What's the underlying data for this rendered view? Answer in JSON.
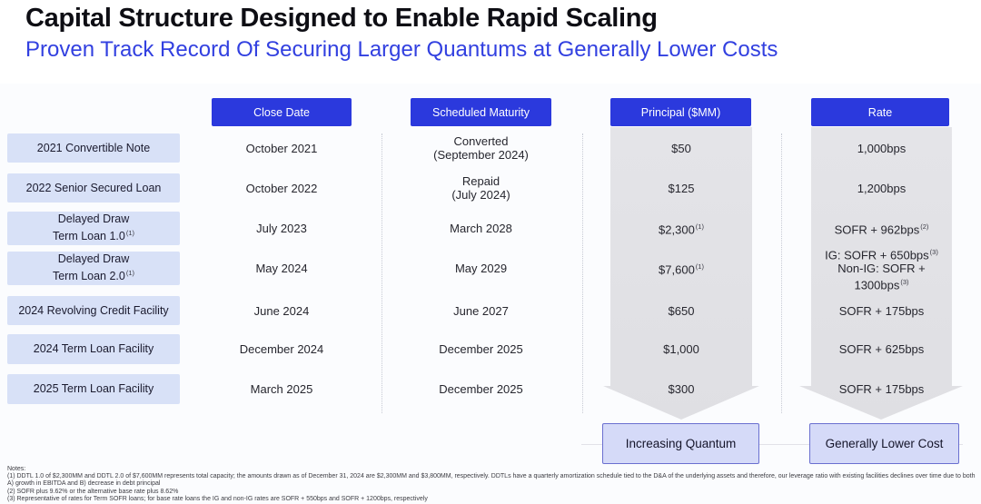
{
  "slide": {
    "title": "Capital Structure Designed to Enable Rapid Scaling",
    "subtitle": "Proven Track Record Of Securing Larger Quantums at Generally Lower Costs"
  },
  "colors": {
    "title": "#0e0e14",
    "subtitle": "#3240e0",
    "header_bg": "#2b39dd",
    "header_text": "#ffffff",
    "row_label_bg": "#d8e1f7",
    "arrow_fill": "#dfdfe3",
    "callout_bg": "#d5daf8",
    "callout_border": "#6a6fd0"
  },
  "table": {
    "columns": [
      "Close Date",
      "Scheduled Maturity",
      "Principal ($MM)",
      "Rate"
    ],
    "rows": [
      {
        "label_lines": [
          "2021 Convertible Note"
        ],
        "label_sup": "",
        "close_date": "October 2021",
        "maturity_lines": [
          "Converted",
          "(September 2024)"
        ],
        "principal": "$50",
        "principal_sup": "",
        "rate_lines": [
          {
            "text": "1,000bps",
            "sup": ""
          }
        ]
      },
      {
        "label_lines": [
          "2022 Senior Secured Loan"
        ],
        "label_sup": "",
        "close_date": "October 2022",
        "maturity_lines": [
          "Repaid",
          "(July 2024)"
        ],
        "principal": "$125",
        "principal_sup": "",
        "rate_lines": [
          {
            "text": "1,200bps",
            "sup": ""
          }
        ]
      },
      {
        "label_lines": [
          "Delayed Draw",
          "Term Loan 1.0"
        ],
        "label_sup": "(1)",
        "close_date": "July 2023",
        "maturity_lines": [
          "March 2028"
        ],
        "principal": "$2,300",
        "principal_sup": "(1)",
        "rate_lines": [
          {
            "text": "SOFR + 962bps",
            "sup": "(2)"
          }
        ]
      },
      {
        "label_lines": [
          "Delayed Draw",
          "Term Loan 2.0"
        ],
        "label_sup": "(1)",
        "close_date": "May 2024",
        "maturity_lines": [
          "May 2029"
        ],
        "principal": "$7,600",
        "principal_sup": "(1)",
        "rate_lines": [
          {
            "text": "IG: SOFR + 650bps",
            "sup": "(3)"
          },
          {
            "text": "Non-IG: SOFR + 1300bps",
            "sup": "(3)"
          }
        ]
      },
      {
        "label_lines": [
          "2024 Revolving Credit Facility"
        ],
        "label_sup": "",
        "close_date": "June 2024",
        "maturity_lines": [
          "June 2027"
        ],
        "principal": "$650",
        "principal_sup": "",
        "rate_lines": [
          {
            "text": "SOFR + 175bps",
            "sup": ""
          }
        ]
      },
      {
        "label_lines": [
          "2024 Term Loan Facility"
        ],
        "label_sup": "",
        "close_date": "December 2024",
        "maturity_lines": [
          "December 2025"
        ],
        "principal": "$1,000",
        "principal_sup": "",
        "rate_lines": [
          {
            "text": "SOFR + 625bps",
            "sup": ""
          }
        ]
      },
      {
        "label_lines": [
          "2025 Term Loan Facility"
        ],
        "label_sup": "",
        "close_date": "March 2025",
        "maturity_lines": [
          "December 2025"
        ],
        "principal": "$300",
        "principal_sup": "",
        "rate_lines": [
          {
            "text": "SOFR + 175bps",
            "sup": ""
          }
        ]
      }
    ]
  },
  "callouts": [
    "Increasing Quantum",
    "Generally Lower Cost"
  ],
  "notes": [
    "Notes:",
    "(1) DDTL 1.0 of $2,300MM and DDTL 2.0 of $7,600MM represents total capacity; the amounts drawn as of December 31, 2024 are $2,300MM and $3,800MM, respectively. DDTLs have a quarterly amortization schedule tied to the D&A of the underlying assets and therefore, our leverage ratio with existing facilities declines over time due to both A) growth in EBITDA and B) decrease in debt principal",
    "(2) SOFR plus 9.62% or the alternative base rate plus 8.62%",
    "(3) Representative of rates for Term SOFR loans; for base rate loans the IG and non-IG rates are SOFR + 550bps and SOFR + 1200bps, respectively"
  ]
}
